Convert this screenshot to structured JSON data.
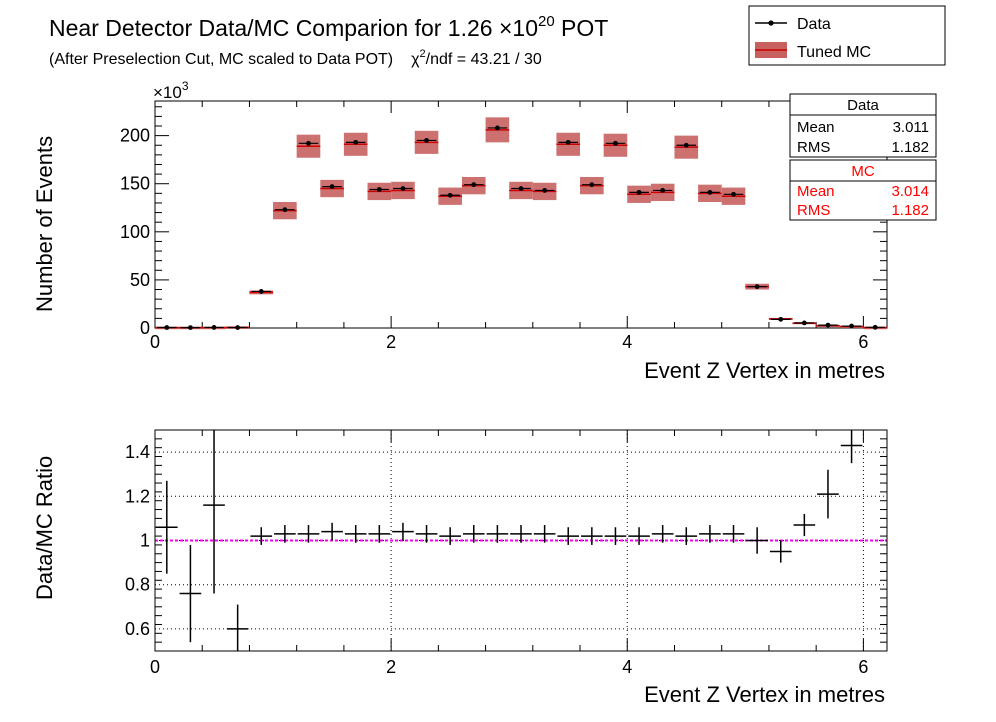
{
  "title": {
    "prefix": "Near Detector Data/MC Comparion for 1.26 ",
    "times": "×10",
    "exponent": "20",
    "suffix": " POT"
  },
  "subtitle": {
    "cut_text": "(After Preselection Cut, MC scaled to Data POT)",
    "chi_symbol": "χ",
    "chi_exp": "2",
    "chi_text": "/ndf = 43.21 / 30"
  },
  "legend": {
    "position": "top-right",
    "data_label": "Data",
    "mc_label": "Tuned MC"
  },
  "colors": {
    "data": "#000000",
    "mc_line": "#cc0000",
    "mc_band": "#c86060",
    "ratio_line": "#ee00ee",
    "stats_mc": "#ff0000"
  },
  "stats": {
    "data": {
      "title": "Data",
      "mean_label": "Mean",
      "mean": "3.011",
      "rms_label": "RMS",
      "rms": "1.182"
    },
    "mc": {
      "title": "MC",
      "mean_label": "Mean",
      "mean": "3.014",
      "rms_label": "RMS",
      "rms": "1.182"
    }
  },
  "chart_data": [
    {
      "type": "bar",
      "title": "Near Detector Data/MC Comparion for 1.26 ×10^20 POT",
      "xlabel": "Event Z Vertex in metres",
      "ylabel": "Number of Events",
      "y_multiplier": "×10",
      "y_multiplier_exp": "3",
      "xlim": [
        0,
        6.2
      ],
      "ylim": [
        0,
        236
      ],
      "x_ticks": [
        0,
        2,
        4,
        6
      ],
      "y_ticks": [
        0,
        50,
        100,
        150,
        200
      ],
      "grid": false,
      "bin_width": 0.2,
      "x": [
        0.1,
        0.3,
        0.5,
        0.7,
        0.9,
        1.1,
        1.3,
        1.5,
        1.7,
        1.9,
        2.1,
        2.3,
        2.5,
        2.7,
        2.9,
        3.1,
        3.3,
        3.5,
        3.7,
        3.9,
        4.1,
        4.3,
        4.5,
        4.7,
        4.9,
        5.1,
        5.3,
        5.5,
        5.7,
        5.9,
        6.1
      ],
      "series": [
        {
          "name": "Tuned MC",
          "values": [
            0.5,
            0.5,
            0.5,
            0.8,
            37,
            122,
            189,
            145,
            191,
            142,
            143,
            193,
            137,
            148,
            206,
            143,
            142,
            191,
            148,
            190,
            139,
            141,
            188,
            140,
            137,
            43,
            9.5,
            5,
            2.5,
            1.5,
            0.5
          ],
          "band_half_height": [
            0.3,
            0.3,
            0.3,
            0.3,
            2,
            9,
            12,
            9,
            12,
            9,
            9,
            12,
            9,
            9,
            13,
            9,
            9,
            12,
            9,
            12,
            9,
            9,
            12,
            9,
            9,
            3,
            1,
            1,
            0.5,
            0.5,
            0.3
          ]
        },
        {
          "name": "Data",
          "values": [
            0.5,
            0.4,
            0.6,
            0.5,
            38,
            123,
            192,
            147,
            193,
            144,
            145,
            195,
            138,
            149,
            208,
            145,
            143,
            193,
            149,
            192,
            141,
            143,
            190,
            141,
            139,
            43,
            9,
            5.3,
            3.0,
            2.0,
            0.7
          ]
        }
      ]
    },
    {
      "type": "scatter",
      "xlabel": "Event Z Vertex in metres",
      "ylabel": "Data/MC Ratio",
      "xlim": [
        0,
        6.2
      ],
      "ylim": [
        0.5,
        1.5
      ],
      "x_ticks": [
        0,
        2,
        4,
        6
      ],
      "y_ticks": [
        0.6,
        0.8,
        1,
        1.2,
        1.4
      ],
      "grid": true,
      "reference_line": 1,
      "bin_width": 0.2,
      "x": [
        0.1,
        0.3,
        0.5,
        0.7,
        0.9,
        1.1,
        1.3,
        1.5,
        1.7,
        1.9,
        2.1,
        2.3,
        2.5,
        2.7,
        2.9,
        3.1,
        3.3,
        3.5,
        3.7,
        3.9,
        4.1,
        4.3,
        4.5,
        4.7,
        4.9,
        5.1,
        5.3,
        5.5,
        5.7,
        5.9
      ],
      "y": [
        1.06,
        0.76,
        1.16,
        0.6,
        1.02,
        1.03,
        1.03,
        1.04,
        1.03,
        1.03,
        1.04,
        1.03,
        1.02,
        1.03,
        1.03,
        1.03,
        1.03,
        1.02,
        1.02,
        1.02,
        1.02,
        1.03,
        1.02,
        1.03,
        1.03,
        1.0,
        0.95,
        1.07,
        1.21,
        1.43
      ],
      "y_err": [
        0.21,
        0.22,
        0.4,
        0.11,
        0.04,
        0.04,
        0.04,
        0.04,
        0.04,
        0.04,
        0.04,
        0.04,
        0.04,
        0.04,
        0.04,
        0.04,
        0.04,
        0.04,
        0.04,
        0.04,
        0.04,
        0.04,
        0.04,
        0.04,
        0.04,
        0.06,
        0.05,
        0.05,
        0.11,
        0.08
      ]
    }
  ]
}
